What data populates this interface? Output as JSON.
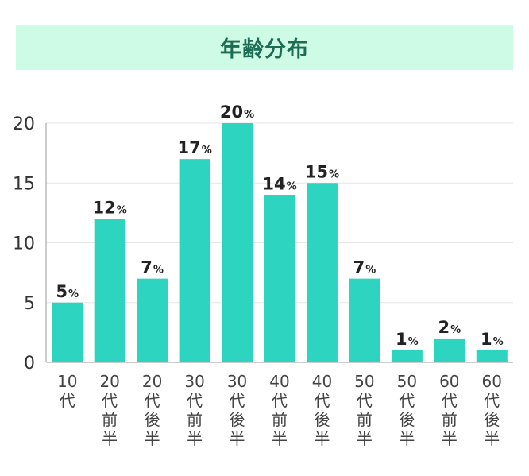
{
  "chart_data": {
    "type": "bar",
    "title": "年齢分布",
    "categories": [
      "10代",
      "20代前半",
      "20代後半",
      "30代前半",
      "30代後半",
      "40代前半",
      "40代後半",
      "50代前半",
      "50代後半",
      "60代前半",
      "60代後半"
    ],
    "values": [
      5,
      12,
      7,
      17,
      20,
      14,
      15,
      7,
      1,
      2,
      1
    ],
    "value_suffix": "%",
    "yticks": [
      "0",
      "5",
      "10",
      "15",
      "20"
    ],
    "ytick_values": [
      0,
      5,
      10,
      15,
      20
    ],
    "ylim": [
      0,
      20
    ],
    "xlabel": "",
    "ylabel": "",
    "grid": true,
    "colors": {
      "bar": "#2dd4bf",
      "title_bg": "#cdfbe6",
      "title_text": "#1c6d54",
      "grid": "#e6e6e6",
      "axis": "#999999"
    }
  }
}
